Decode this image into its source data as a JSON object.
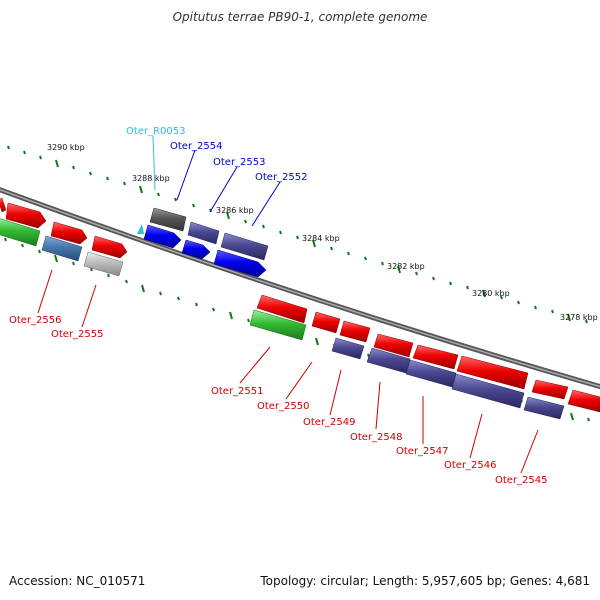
{
  "title": "Opitutus terrae PB90-1, complete genome",
  "footer": {
    "accession": "Accession: NC_010571",
    "topology": "Topology: circular; Length: 5,957,605 bp; Genes: 4,681"
  },
  "colors": {
    "red_gene": "#ee0000",
    "blue_gene": "#0000ee",
    "purple_gene": "#4a4890",
    "green_gene": "#33bb33",
    "steelblue_gene": "#4477aa",
    "gray_gene": "#bbbbbb",
    "darkgray_gene": "#555555",
    "rna_label": "#33bbdd",
    "tick": "#117711"
  },
  "scale_labels": {
    "k3290": "3290 kbp",
    "k3288": "3288 kbp",
    "k3286": "3286 kbp",
    "k3284": "3284 kbp",
    "k3282": "3282 kbp",
    "k3280": "3280 kbp",
    "k3278": "3278 kbp"
  },
  "gene_labels": {
    "r0053": "Oter_R0053",
    "g2554": "Oter_2554",
    "g2553": "Oter_2553",
    "g2552": "Oter_2552",
    "g2556": "Oter_2556",
    "g2555": "Oter_2555",
    "g2551": "Oter_2551",
    "g2550": "Oter_2550",
    "g2549": "Oter_2549",
    "g2548": "Oter_2548",
    "g2547": "Oter_2547",
    "g2546": "Oter_2546",
    "g2545": "Oter_2545"
  }
}
